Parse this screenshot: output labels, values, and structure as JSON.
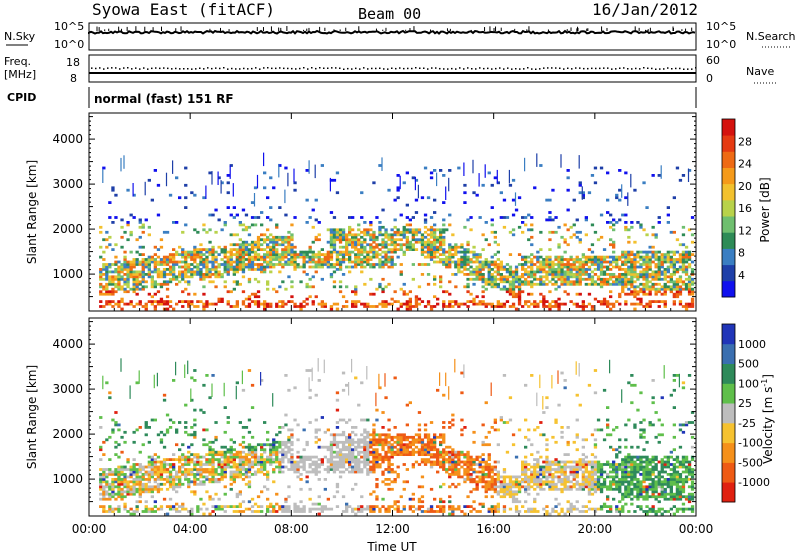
{
  "header": {
    "title": "Syowa East (fitACF)",
    "beam": "Beam 00",
    "date": "16/Jan/2012"
  },
  "noise_panel": {
    "left_label": "N.Sky",
    "right_label": "N.Search",
    "left_ticks": [
      "10^5",
      "10^0"
    ],
    "right_ticks": [
      "10^5",
      "10^0"
    ]
  },
  "freq_panel": {
    "left_label_line1": "Freq.",
    "left_label_line2": "[MHz]",
    "right_label": "Nave",
    "left_ticks": [
      "18",
      "8"
    ],
    "right_ticks": [
      "60",
      "0"
    ]
  },
  "cpid_panel": {
    "label": "CPID",
    "text": "normal (fast) 151 RF"
  },
  "chart_data": [
    {
      "type": "heatmap",
      "title": "",
      "xlabel": "Time UT",
      "ylabel": "Slant Range [km]",
      "x_ticks": [
        "00:00",
        "04:00",
        "08:00",
        "12:00",
        "16:00",
        "20:00",
        "00:00"
      ],
      "xlim_hours": [
        0,
        24
      ],
      "y_ticks": [
        1000,
        2000,
        3000,
        4000
      ],
      "ylim": [
        180,
        4580
      ],
      "colorbar": {
        "label": "Power [dB]",
        "ticks": [
          "4",
          "8",
          "12",
          "16",
          "20",
          "24",
          "28"
        ],
        "colors": [
          "#1010ee",
          "#1e3fa8",
          "#3a7ec2",
          "#2e8b57",
          "#6fbf6f",
          "#b8d24a",
          "#f2c12e",
          "#f59a1a",
          "#ee6a14",
          "#e53a12",
          "#d4120e"
        ]
      }
    },
    {
      "type": "heatmap",
      "title": "",
      "xlabel": "Time UT",
      "ylabel": "Slant Range [km]",
      "x_ticks": [
        "00:00",
        "04:00",
        "08:00",
        "12:00",
        "16:00",
        "20:00",
        "00:00"
      ],
      "xlim_hours": [
        0,
        24
      ],
      "y_ticks": [
        1000,
        2000,
        3000,
        4000
      ],
      "ylim": [
        180,
        4580
      ],
      "colorbar": {
        "label": "Velocity [m s",
        "label_sup": "-1",
        "label_end": "]",
        "ticks": [
          "1000",
          "500",
          "100",
          "25",
          "-25",
          "-100",
          "-500",
          "-1000"
        ],
        "colors": [
          "#2035b8",
          "#3a6fb0",
          "#2e8a5a",
          "#5fbf4a",
          "#bdbdbd",
          "#f6c230",
          "#f5901a",
          "#ee5a14",
          "#e02010"
        ]
      }
    }
  ]
}
